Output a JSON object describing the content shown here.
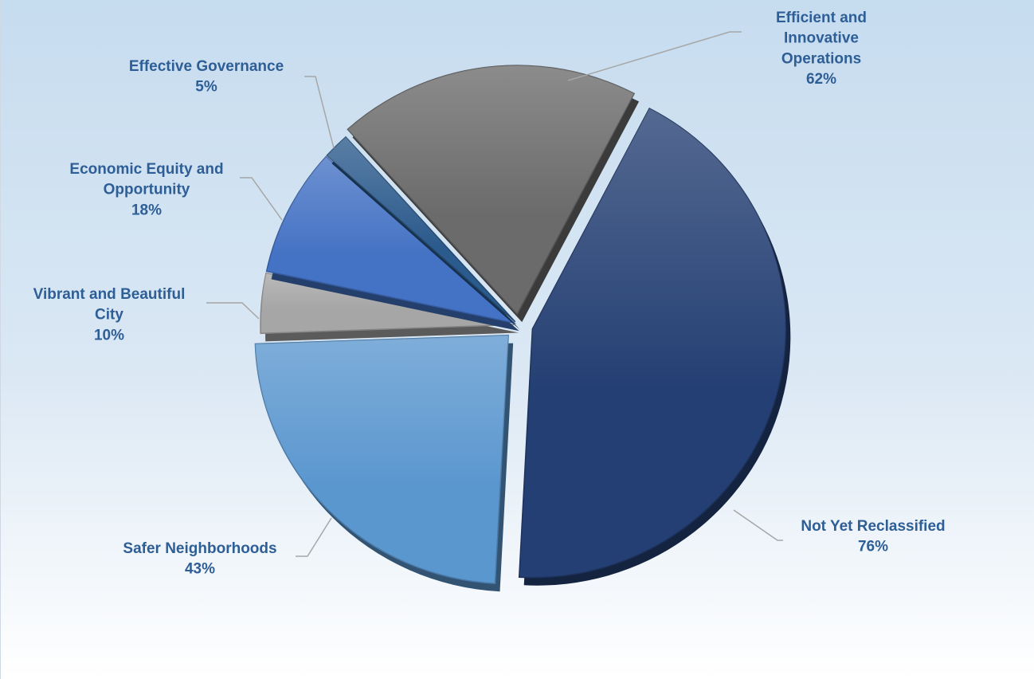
{
  "chart_data": {
    "type": "pie",
    "title": "",
    "legend": "none",
    "slices": [
      {
        "name": "Not Yet Reclassified",
        "value": "76%",
        "label_lines": [
          "Not Yet Reclassified"
        ],
        "color": "#243f73"
      },
      {
        "name": "Safer Neighborhoods",
        "value": "43%",
        "label_lines": [
          "Safer Neighborhoods"
        ],
        "color": "#5b97cf"
      },
      {
        "name": "Vibrant and Beautiful City",
        "value": "10%",
        "label_lines": [
          "Vibrant and Beautiful",
          "City"
        ],
        "color": "#a6a6a6"
      },
      {
        "name": "Economic Equity and Opportunity",
        "value": "18%",
        "label_lines": [
          "Economic Equity and",
          "Opportunity"
        ],
        "color": "#4472c4"
      },
      {
        "name": "Effective Governance",
        "value": "5%",
        "label_lines": [
          "Effective Governance"
        ],
        "color": "#2b5a8c"
      },
      {
        "name": "Efficient and Innovative Operations",
        "value": "62%",
        "label_lines": [
          "Efficient and",
          "Innovative",
          "Operations"
        ],
        "color": "#6b6b6b"
      }
    ],
    "colors": {
      "label_text": "#2e5e96",
      "leader_line": "#a6a6a6",
      "background_top": "#c6dcef",
      "background_bottom": "#ffffff"
    }
  }
}
